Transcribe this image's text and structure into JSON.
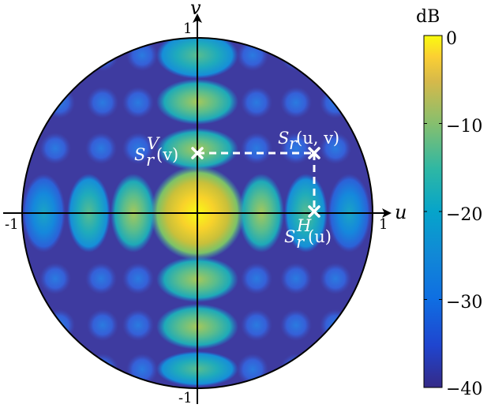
{
  "axes": {
    "u_label": "u",
    "v_label": "v",
    "tick_u_neg": "-1",
    "tick_u_pos": "1",
    "tick_v_pos": "1",
    "tick_v_neg": "-1"
  },
  "annotations": {
    "sv_main": "S",
    "sv_sup": "V",
    "sv_sub": "r",
    "sv_arg": "(v)",
    "s_main": "S",
    "s_sub": "r",
    "s_arg": "(u, v)",
    "sh_main": "S",
    "sh_sup": "H",
    "sh_sub": "r",
    "sh_arg": "(u)"
  },
  "colorbar": {
    "label": "dB",
    "ticks": [
      "0",
      "−10",
      "−20",
      "−30",
      "−40"
    ],
    "colormap": "parula",
    "range_db": [
      -40,
      0
    ]
  },
  "colors": {
    "background_low": "#3e3ba0",
    "peak": "#f9fb15",
    "marker": "#ffffff"
  }
}
